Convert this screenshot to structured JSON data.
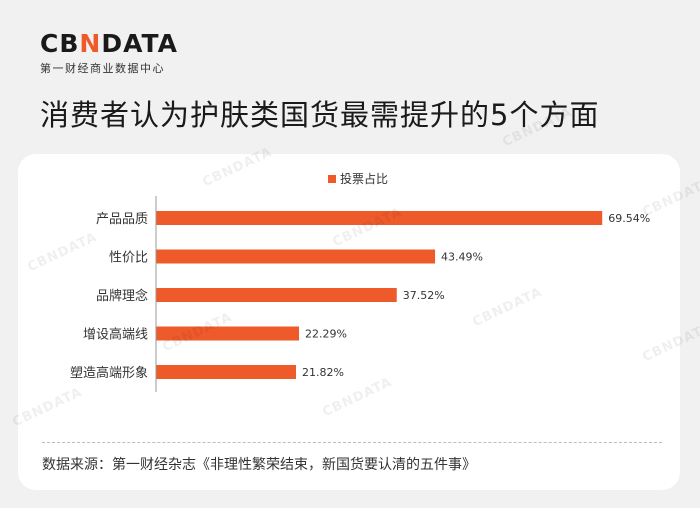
{
  "brand": {
    "logo_text_pre": "CB",
    "logo_text_accent": "N",
    "logo_text_post": "DATA",
    "subtitle": "第一财经商业数据中心",
    "accent_color": "#ef5a2a"
  },
  "title": "消费者认为护肤类国货最需提升的5个方面",
  "chart_data": {
    "type": "bar",
    "orientation": "horizontal",
    "categories": [
      "产品品质",
      "性价比",
      "品牌理念",
      "增设高端线",
      "塑造高端形象"
    ],
    "series": [
      {
        "name": "投票占比",
        "values": [
          69.54,
          43.49,
          37.52,
          22.29,
          21.82
        ],
        "color": "#ef5a2a"
      }
    ],
    "value_labels": [
      "69.54%",
      "43.49%",
      "37.52%",
      "22.29%",
      "21.82%"
    ],
    "xlim": [
      0,
      72
    ],
    "grid": false,
    "legend_position": "top-center"
  },
  "source": "数据来源：第一财经杂志《非理性繁荣结束，新国货要认清的五件事》"
}
